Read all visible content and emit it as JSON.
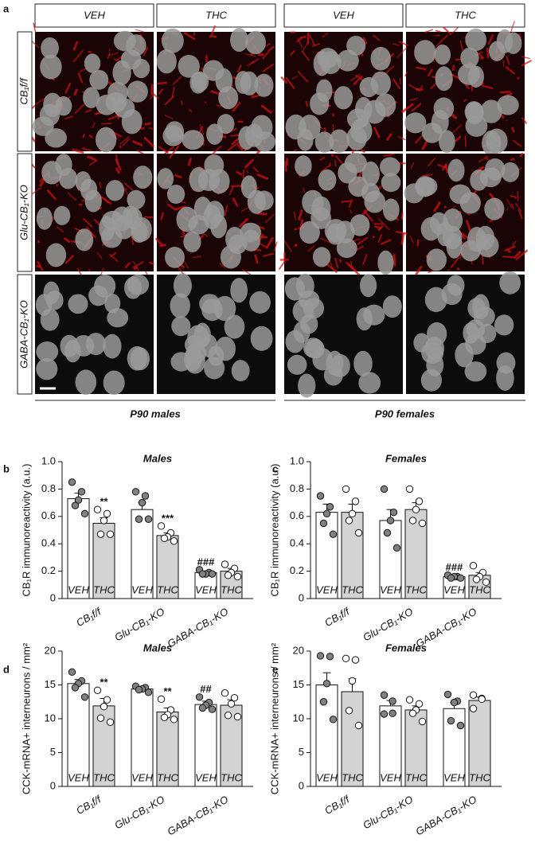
{
  "panel_labels": [
    "a",
    "b",
    "c",
    "d",
    "e"
  ],
  "panel_a": {
    "column_headers": [
      "VEH",
      "THC",
      "VEH",
      "THC"
    ],
    "row_labels": [
      "CB₁f/f",
      "Glu-CB₁-KO",
      "GABA-CB₁-KO"
    ],
    "group_labels": [
      "P90 males",
      "P90 females"
    ]
  },
  "chart_data": [
    {
      "type": "bar",
      "title": "Males",
      "ylabel": "CB₁R immunoreactivity (a.u.)",
      "categories": [
        "CB₁f/f",
        "Glu-CB₁-KO",
        "GABA-CB₁-KO"
      ],
      "ylim": [
        0,
        1.0
      ],
      "yticks": [
        0,
        0.2,
        0.4,
        0.6,
        0.8,
        {
          "value": 1.0,
          "label": "1.0"
        }
      ],
      "series": [
        {
          "name": "VEH",
          "color": "#ffffff",
          "point_color": "#808080",
          "values": [
            0.73,
            0.65,
            0.19
          ],
          "errors": [
            0.04,
            0.05,
            0.01
          ],
          "annotations": [
            null,
            null,
            "###"
          ],
          "points": [
            [
              0.85,
              0.78,
              0.72,
              0.68,
              0.62
            ],
            [
              0.78,
              0.75,
              0.7,
              0.58,
              0.58
            ],
            [
              0.21,
              0.19,
              0.18,
              0.18,
              0.18
            ]
          ]
        },
        {
          "name": "THC",
          "color": "#d3d3d3",
          "point_color": "#ffffff",
          "values": [
            0.55,
            0.46,
            0.2
          ],
          "errors": [
            0.04,
            0.02,
            0.02
          ],
          "annotations": [
            "**",
            "***",
            null
          ],
          "points": [
            [
              0.65,
              0.62,
              0.57,
              0.47,
              0.47
            ],
            [
              0.53,
              0.48,
              0.45,
              0.44,
              0.42
            ],
            [
              0.25,
              0.22,
              0.19,
              0.17,
              0.16
            ]
          ]
        }
      ]
    },
    {
      "type": "bar",
      "title": "Females",
      "ylabel": "CB₁R immunoreactivity (a.u.)",
      "categories": [
        "CB₁f/f",
        "Glu-CB₁-KO",
        "GABA-CB₁-KO"
      ],
      "ylim": [
        0,
        1.0
      ],
      "yticks": [
        0,
        0.2,
        0.4,
        0.6,
        0.8,
        {
          "value": 1.0,
          "label": "1.0"
        }
      ],
      "series": [
        {
          "name": "VEH",
          "color": "#ffffff",
          "point_color": "#808080",
          "values": [
            0.63,
            0.57,
            0.16
          ],
          "errors": [
            0.06,
            0.08,
            0.01
          ],
          "annotations": [
            null,
            null,
            "###"
          ],
          "points": [
            [
              0.75,
              0.67,
              0.62,
              0.55,
              0.47
            ],
            [
              0.8,
              0.63,
              0.57,
              0.48,
              0.37
            ],
            [
              0.17,
              0.16,
              0.16,
              0.15,
              0.15
            ]
          ]
        },
        {
          "name": "THC",
          "color": "#d3d3d3",
          "point_color": "#ffffff",
          "values": [
            0.63,
            0.65,
            0.17
          ],
          "errors": [
            0.06,
            0.05,
            0.02
          ],
          "annotations": [
            null,
            null,
            null
          ],
          "points": [
            [
              0.8,
              0.71,
              0.62,
              0.57,
              0.48
            ],
            [
              0.8,
              0.71,
              0.65,
              0.57,
              0.55
            ],
            [
              0.24,
              0.19,
              0.16,
              0.14,
              0.12
            ]
          ]
        }
      ]
    },
    {
      "type": "bar",
      "title": "Males",
      "ylabel": "CCK-mRNA+ interneurons / mm²",
      "categories": [
        "CB₁f/f",
        "Glu-CB₁-KO",
        "GABA-CB₁-KO"
      ],
      "ylim": [
        0,
        20
      ],
      "yticks": [
        0,
        5,
        10,
        15,
        20
      ],
      "series": [
        {
          "name": "VEH",
          "color": "#ffffff",
          "point_color": "#808080",
          "values": [
            15.2,
            14.4,
            12.1
          ],
          "errors": [
            0.6,
            0.3,
            0.5
          ],
          "annotations": [
            null,
            null,
            "##"
          ],
          "points": [
            [
              16.9,
              15.6,
              15.2,
              14.6,
              13.2
            ],
            [
              14.8,
              14.6,
              14.4,
              14.3,
              13.9
            ],
            [
              13.2,
              12.4,
              12.0,
              11.6,
              11.4
            ]
          ]
        },
        {
          "name": "THC",
          "color": "#d3d3d3",
          "point_color": "#ffffff",
          "values": [
            11.9,
            11.0,
            12.0
          ],
          "errors": [
            1.1,
            0.6,
            0.8
          ],
          "annotations": [
            "**",
            "**",
            null
          ],
          "points": [
            [
              14.2,
              12.8,
              11.8,
              10.1,
              9.5
            ],
            [
              12.9,
              11.3,
              10.6,
              10.2,
              9.9
            ],
            [
              13.8,
              13.1,
              12.2,
              10.5,
              10.3
            ]
          ]
        }
      ]
    },
    {
      "type": "bar",
      "title": "Females",
      "ylabel": "CCK-mRNA+ interneurons / mm²",
      "categories": [
        "CB₁f/f",
        "Glu-CB₁-KO",
        "GABA-CB₁-KO"
      ],
      "ylim": [
        0,
        20
      ],
      "yticks": [
        0,
        5,
        10,
        15,
        20
      ],
      "series": [
        {
          "name": "VEH",
          "color": "#ffffff",
          "point_color": "#808080",
          "values": [
            15.0,
            11.9,
            11.5
          ],
          "errors": [
            1.8,
            0.8,
            0.9
          ],
          "annotations": [
            null,
            null,
            null
          ],
          "points": [
            [
              19.3,
              19.2,
              15.2,
              12.5,
              9.9
            ],
            [
              13.5,
              12.6,
              10.8,
              10.7
            ],
            [
              13.6,
              12.6,
              12.4,
              9.7,
              9.0
            ]
          ]
        },
        {
          "name": "THC",
          "color": "#d3d3d3",
          "point_color": "#ffffff",
          "values": [
            14.0,
            11.3,
            12.7
          ],
          "errors": [
            1.9,
            0.6,
            0.5
          ],
          "annotations": [
            null,
            null,
            null
          ],
          "points": [
            [
              18.9,
              18.7,
              15.6,
              11.2,
              9.0
            ],
            [
              12.8,
              12.2,
              11.3,
              10.8,
              9.6
            ],
            [
              13.5,
              13.0,
              12.9,
              11.5
            ]
          ]
        }
      ]
    }
  ]
}
